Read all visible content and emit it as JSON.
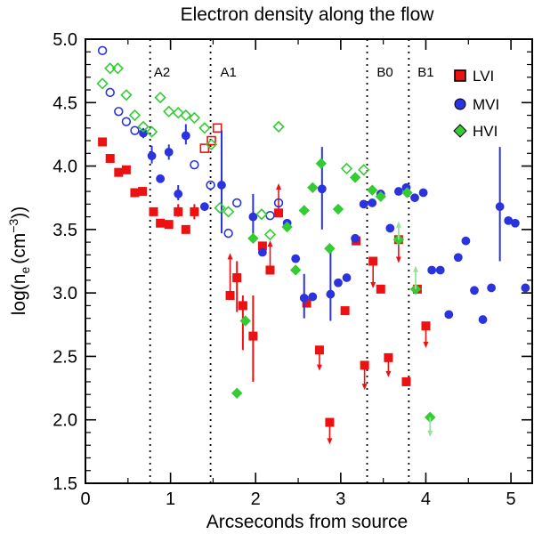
{
  "chart_data": {
    "type": "scatter",
    "title": "Electron density along the flow",
    "xlabel": "Arcseconds from source",
    "ylabel": "log(n",
    "ylabel_subscript": "e",
    "ylabel_unit": "(cm",
    "ylabel_exponent": "−3",
    "ylabel_close": "))",
    "xlim": [
      0,
      5.25
    ],
    "ylim": [
      1.5,
      5.0
    ],
    "xticks": [
      0,
      1,
      2,
      3,
      4,
      5
    ],
    "yticks": [
      1.5,
      2.0,
      2.5,
      3.0,
      3.5,
      4.0,
      4.5,
      5.0
    ],
    "xtick_labels": [
      "0",
      "1",
      "2",
      "3",
      "4",
      "5"
    ],
    "ytick_labels": [
      "1.5",
      "2.0",
      "2.5",
      "3.0",
      "3.5",
      "4.0",
      "4.5",
      "5.0"
    ],
    "regions": [
      {
        "label": "A2",
        "x": 0.76,
        "label_x": 0.9
      },
      {
        "label": "A1",
        "x": 1.47,
        "label_x": 1.68
      },
      {
        "label": "B0",
        "x": 3.31,
        "label_x": 3.52
      },
      {
        "label": "B1",
        "x": 3.8,
        "label_x": 4.0
      }
    ],
    "legend": {
      "position": "top-right",
      "entries": [
        "LVI",
        "MVI",
        "HVI"
      ]
    },
    "colors": {
      "LVI": "#ee1111",
      "MVI": "#2a33dd",
      "HVI": "#33cc33",
      "HVI_light": "#99e099",
      "axis": "#000000"
    },
    "series": [
      {
        "name": "LVI",
        "marker": "square",
        "points": [
          {
            "x": 0.2,
            "y": 4.19,
            "filled": true
          },
          {
            "x": 0.29,
            "y": 4.06,
            "filled": true
          },
          {
            "x": 0.39,
            "y": 3.95,
            "filled": true
          },
          {
            "x": 0.48,
            "y": 3.97,
            "filled": true
          },
          {
            "x": 0.58,
            "y": 3.79,
            "filled": true
          },
          {
            "x": 0.67,
            "y": 3.8,
            "filled": true
          },
          {
            "x": 0.8,
            "y": 3.64,
            "filled": true
          },
          {
            "x": 0.88,
            "y": 3.55,
            "filled": true
          },
          {
            "x": 0.98,
            "y": 3.54,
            "filled": true
          },
          {
            "x": 1.09,
            "y": 3.64,
            "filled": true,
            "err": [
              3.6,
              3.7
            ]
          },
          {
            "x": 1.18,
            "y": 3.5,
            "filled": true
          },
          {
            "x": 1.28,
            "y": 3.64,
            "filled": true,
            "err": [
              3.58,
              3.7
            ]
          },
          {
            "x": 1.4,
            "y": 4.14,
            "filled": false
          },
          {
            "x": 1.48,
            "y": 4.2,
            "filled": false
          },
          {
            "x": 1.55,
            "y": 4.3,
            "filled": false
          },
          {
            "x": 1.7,
            "y": 2.98,
            "filled": true,
            "arrow": "up",
            "arrow_to": 3.3
          },
          {
            "x": 1.78,
            "y": 3.12,
            "filled": true,
            "err": [
              2.85,
              3.25
            ]
          },
          {
            "x": 1.85,
            "y": 2.9,
            "filled": true,
            "err": [
              2.55,
              2.98
            ]
          },
          {
            "x": 1.97,
            "y": 2.66,
            "filled": true,
            "err": [
              2.3,
              2.98
            ]
          },
          {
            "x": 2.08,
            "y": 3.37,
            "filled": true
          },
          {
            "x": 2.17,
            "y": 3.18,
            "filled": true,
            "arrow": "up",
            "arrow_to": 3.4
          },
          {
            "x": 2.27,
            "y": 3.63,
            "filled": true,
            "arrow": "up",
            "arrow_to": 3.85
          },
          {
            "x": 2.6,
            "y": 2.92,
            "filled": true
          },
          {
            "x": 2.75,
            "y": 2.55,
            "filled": true,
            "arrow": "down",
            "arrow_to": 2.4
          },
          {
            "x": 2.87,
            "y": 1.98,
            "filled": true,
            "arrow": "down",
            "arrow_to": 1.82
          },
          {
            "x": 3.05,
            "y": 2.86,
            "filled": true
          },
          {
            "x": 3.18,
            "y": 3.41,
            "filled": true
          },
          {
            "x": 3.28,
            "y": 2.43,
            "filled": true,
            "arrow": "down",
            "arrow_to": 2.25
          },
          {
            "x": 3.38,
            "y": 3.25,
            "filled": true,
            "arrow": "down",
            "arrow_to": 3.05
          },
          {
            "x": 3.47,
            "y": 3.03,
            "filled": true
          },
          {
            "x": 3.56,
            "y": 2.49,
            "filled": true,
            "arrow": "down",
            "arrow_to": 2.35
          },
          {
            "x": 3.68,
            "y": 3.42,
            "filled": true,
            "arrow": "down",
            "arrow_to": 3.25
          },
          {
            "x": 3.77,
            "y": 2.3,
            "filled": true
          },
          {
            "x": 3.9,
            "y": 3.03,
            "filled": true
          },
          {
            "x": 4.0,
            "y": 2.74,
            "filled": true,
            "arrow": "down",
            "arrow_to": 2.58
          }
        ]
      },
      {
        "name": "MVI",
        "marker": "circle",
        "points": [
          {
            "x": 0.2,
            "y": 4.91,
            "filled": false
          },
          {
            "x": 0.29,
            "y": 4.58,
            "filled": false
          },
          {
            "x": 0.39,
            "y": 4.43,
            "filled": false
          },
          {
            "x": 0.48,
            "y": 4.35,
            "filled": false
          },
          {
            "x": 0.58,
            "y": 4.28,
            "filled": false
          },
          {
            "x": 0.68,
            "y": 4.26,
            "filled": true,
            "err": [
              4.22,
              4.3
            ]
          },
          {
            "x": 0.78,
            "y": 4.08,
            "filled": true,
            "err": [
              4.02,
              4.16
            ]
          },
          {
            "x": 0.88,
            "y": 3.9,
            "filled": true
          },
          {
            "x": 0.98,
            "y": 4.11,
            "filled": true,
            "err": [
              4.05,
              4.17
            ]
          },
          {
            "x": 1.09,
            "y": 3.78,
            "filled": true,
            "err": [
              3.73,
              3.85
            ]
          },
          {
            "x": 1.18,
            "y": 4.24,
            "filled": true,
            "err": [
              4.17,
              4.33
            ]
          },
          {
            "x": 1.28,
            "y": 4.01,
            "filled": false
          },
          {
            "x": 1.4,
            "y": 3.68,
            "filled": true
          },
          {
            "x": 1.47,
            "y": 3.85,
            "filled": false
          },
          {
            "x": 1.6,
            "y": 3.85,
            "filled": true,
            "err": [
              3.47,
              4.28
            ]
          },
          {
            "x": 1.68,
            "y": 3.47,
            "filled": false
          },
          {
            "x": 1.78,
            "y": 3.71,
            "filled": false
          },
          {
            "x": 1.97,
            "y": 3.6,
            "filled": true,
            "err": [
              3.4,
              3.78
            ]
          },
          {
            "x": 2.08,
            "y": 3.32,
            "filled": true
          },
          {
            "x": 2.17,
            "y": 3.61,
            "filled": false
          },
          {
            "x": 2.27,
            "y": 3.71,
            "filled": false
          },
          {
            "x": 2.37,
            "y": 3.55,
            "filled": true
          },
          {
            "x": 2.47,
            "y": 3.27,
            "filled": true
          },
          {
            "x": 2.57,
            "y": 2.96,
            "filled": true,
            "err": [
              2.8,
              3.15
            ]
          },
          {
            "x": 2.67,
            "y": 2.97,
            "filled": true
          },
          {
            "x": 2.78,
            "y": 3.82,
            "filled": true,
            "err": [
              3.5,
              4.15
            ]
          },
          {
            "x": 2.88,
            "y": 2.99,
            "filled": true,
            "err": [
              2.78,
              3.35
            ]
          },
          {
            "x": 2.97,
            "y": 3.08,
            "filled": true
          },
          {
            "x": 3.07,
            "y": 3.12,
            "filled": true
          },
          {
            "x": 3.17,
            "y": 3.43,
            "filled": true
          },
          {
            "x": 3.27,
            "y": 3.7,
            "filled": true
          },
          {
            "x": 3.37,
            "y": 3.71,
            "filled": true
          },
          {
            "x": 3.47,
            "y": 3.78,
            "filled": true
          },
          {
            "x": 3.58,
            "y": 3.51,
            "filled": true
          },
          {
            "x": 3.68,
            "y": 3.8,
            "filled": true
          },
          {
            "x": 3.77,
            "y": 3.83,
            "filled": true
          },
          {
            "x": 3.87,
            "y": 3.75,
            "filled": true
          },
          {
            "x": 3.97,
            "y": 3.79,
            "filled": true
          },
          {
            "x": 4.07,
            "y": 3.18,
            "filled": true
          },
          {
            "x": 4.17,
            "y": 3.18,
            "filled": true
          },
          {
            "x": 4.27,
            "y": 2.83,
            "filled": true
          },
          {
            "x": 4.38,
            "y": 3.28,
            "filled": true
          },
          {
            "x": 4.47,
            "y": 3.41,
            "filled": true
          },
          {
            "x": 4.57,
            "y": 3.02,
            "filled": true
          },
          {
            "x": 4.67,
            "y": 2.79,
            "filled": true
          },
          {
            "x": 4.77,
            "y": 3.04,
            "filled": true
          },
          {
            "x": 4.87,
            "y": 3.68,
            "filled": true,
            "err": [
              3.25,
              4.15
            ]
          },
          {
            "x": 4.97,
            "y": 3.57,
            "filled": true
          },
          {
            "x": 5.05,
            "y": 3.55,
            "filled": true
          },
          {
            "x": 5.17,
            "y": 3.04,
            "filled": true
          }
        ]
      },
      {
        "name": "HVI",
        "marker": "diamond",
        "points": [
          {
            "x": 0.2,
            "y": 4.65,
            "filled": false
          },
          {
            "x": 0.29,
            "y": 4.77,
            "filled": false
          },
          {
            "x": 0.38,
            "y": 4.77,
            "filled": false
          },
          {
            "x": 0.48,
            "y": 4.56,
            "filled": false
          },
          {
            "x": 0.58,
            "y": 4.4,
            "filled": false
          },
          {
            "x": 0.68,
            "y": 4.31,
            "filled": false
          },
          {
            "x": 0.78,
            "y": 4.27,
            "filled": false
          },
          {
            "x": 0.88,
            "y": 4.54,
            "filled": false
          },
          {
            "x": 0.98,
            "y": 4.43,
            "filled": false
          },
          {
            "x": 1.09,
            "y": 4.42,
            "filled": false
          },
          {
            "x": 1.18,
            "y": 4.4,
            "filled": false
          },
          {
            "x": 1.28,
            "y": 4.38,
            "filled": false
          },
          {
            "x": 1.4,
            "y": 4.3,
            "filled": false
          },
          {
            "x": 1.48,
            "y": 4.17,
            "filled": false
          },
          {
            "x": 1.58,
            "y": 3.67,
            "filled": false
          },
          {
            "x": 1.68,
            "y": 3.64,
            "filled": false
          },
          {
            "x": 1.78,
            "y": 2.21,
            "filled": true
          },
          {
            "x": 1.88,
            "y": 2.78,
            "filled": true
          },
          {
            "x": 1.97,
            "y": 3.43,
            "filled": true
          },
          {
            "x": 2.07,
            "y": 3.62,
            "filled": false
          },
          {
            "x": 2.17,
            "y": 3.46,
            "filled": false
          },
          {
            "x": 2.27,
            "y": 4.31,
            "filled": false
          },
          {
            "x": 2.37,
            "y": 3.52,
            "filled": true
          },
          {
            "x": 2.47,
            "y": 3.18,
            "filled": true
          },
          {
            "x": 2.57,
            "y": 3.65,
            "filled": true
          },
          {
            "x": 2.67,
            "y": 3.83,
            "filled": true
          },
          {
            "x": 2.77,
            "y": 4.02,
            "filled": true
          },
          {
            "x": 2.87,
            "y": 3.35,
            "filled": true
          },
          {
            "x": 2.97,
            "y": 3.66,
            "filled": true
          },
          {
            "x": 3.07,
            "y": 3.98,
            "filled": false
          },
          {
            "x": 3.17,
            "y": 3.91,
            "filled": true
          },
          {
            "x": 3.27,
            "y": 3.97,
            "filled": false
          },
          {
            "x": 3.37,
            "y": 3.81,
            "filled": true
          },
          {
            "x": 3.47,
            "y": 3.76,
            "filled": true
          },
          {
            "x": 3.68,
            "y": 3.42,
            "filled": true
          },
          {
            "x": 3.78,
            "y": 3.79,
            "filled": true
          },
          {
            "x": 3.88,
            "y": 3.03,
            "filled": true
          },
          {
            "x": 4.05,
            "y": 2.02,
            "filled": true
          }
        ]
      }
    ]
  }
}
